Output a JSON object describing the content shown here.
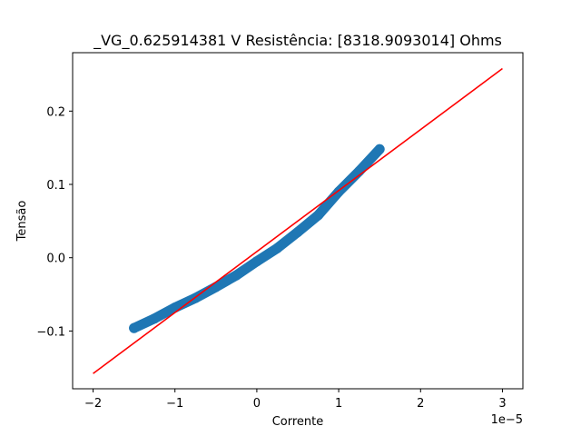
{
  "chart_data": {
    "type": "scatter",
    "title": "_VG_0.625914381 V  Resistência: [8318.9093014] Ohms",
    "xlabel": "Corrente",
    "ylabel": "Tensão",
    "x_offset_label": "1e−5",
    "xlim": [
      -2.25e-05,
      3.25e-05
    ],
    "ylim": [
      -0.1788,
      0.2797
    ],
    "xticks": [
      -2e-05,
      -1e-05,
      0,
      1e-05,
      2e-05,
      3e-05
    ],
    "xtick_labels": [
      "−2",
      "−1",
      "0",
      "1",
      "2",
      "3"
    ],
    "yticks": [
      -0.1,
      0,
      0.1,
      0.2
    ],
    "ytick_labels": [
      "−0.1",
      "0.0",
      "0.1",
      "0.2"
    ],
    "grid": false,
    "series": [
      {
        "kind": "scatter",
        "color": "#1f77b4",
        "x": [
          -1.5e-05,
          -1.25e-05,
          -1e-05,
          -7.5e-06,
          -5e-06,
          -2.5e-06,
          0,
          2.5e-06,
          5e-06,
          7.5e-06,
          1e-05,
          1.25e-05,
          1.5e-05
        ],
        "y": [
          -0.096,
          -0.083,
          -0.068,
          -0.055,
          -0.04,
          -0.024,
          -0.005,
          0.013,
          0.035,
          0.058,
          0.09,
          0.118,
          0.148
        ]
      },
      {
        "kind": "line",
        "color": "#ff0000",
        "x": [
          -2e-05,
          3e-05
        ],
        "y": [
          -0.158,
          0.258
        ]
      }
    ]
  }
}
